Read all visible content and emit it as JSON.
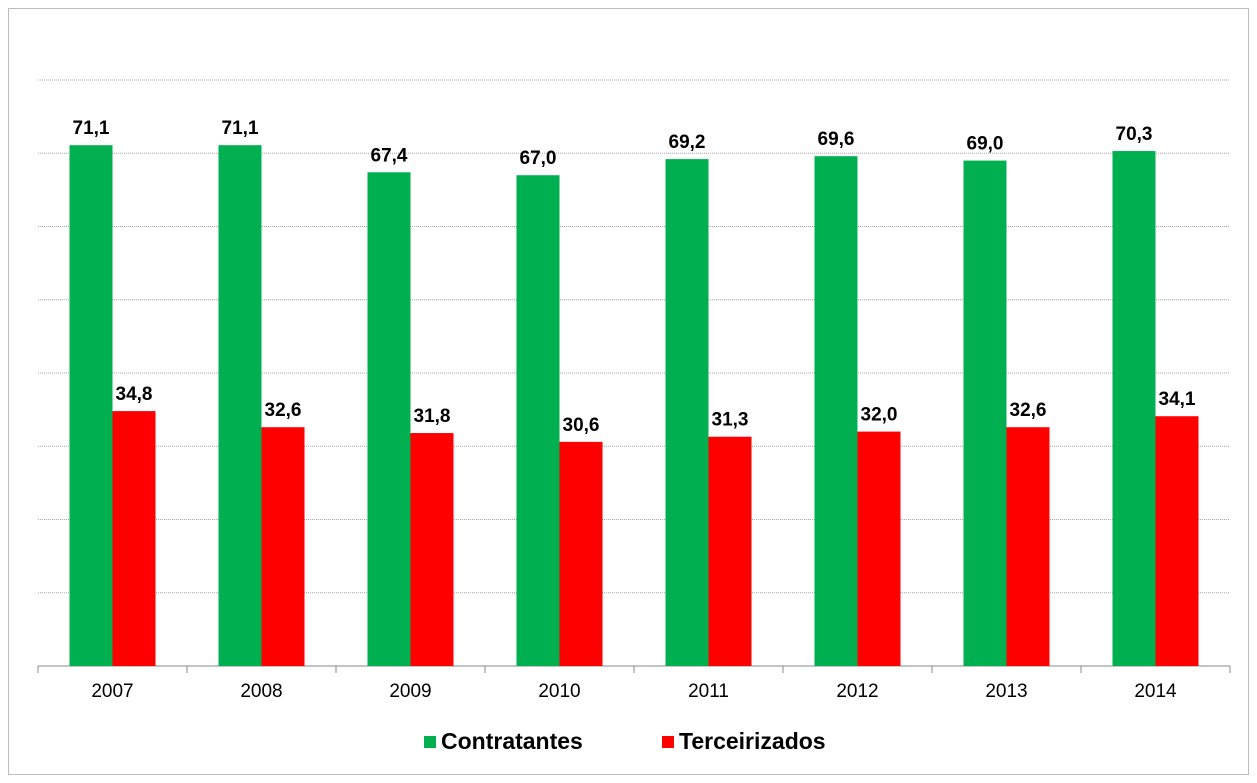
{
  "chart_data": {
    "type": "bar",
    "categories": [
      "2007",
      "2008",
      "2009",
      "2010",
      "2011",
      "2012",
      "2013",
      "2014"
    ],
    "series": [
      {
        "name": "Contratantes",
        "color": "#00b050",
        "values": [
          71.1,
          71.1,
          67.4,
          67.0,
          69.2,
          69.6,
          69.0,
          70.3
        ],
        "value_labels": [
          "71,1",
          "71,1",
          "67,4",
          "67,0",
          "69,2",
          "69,6",
          "69,0",
          "70,3"
        ]
      },
      {
        "name": "Terceirizados",
        "color": "#ff0000",
        "values": [
          34.8,
          32.6,
          31.8,
          30.6,
          31.3,
          32.0,
          32.6,
          34.1
        ],
        "value_labels": [
          "34,8",
          "32,6",
          "31,8",
          "30,6",
          "31,3",
          "32,0",
          "32,6",
          "34,1"
        ]
      }
    ],
    "ylim": [
      0,
      80
    ],
    "yticks": [
      0,
      10,
      20,
      30,
      40,
      50,
      60,
      70,
      80
    ],
    "grid": true,
    "legend": "bottom"
  }
}
